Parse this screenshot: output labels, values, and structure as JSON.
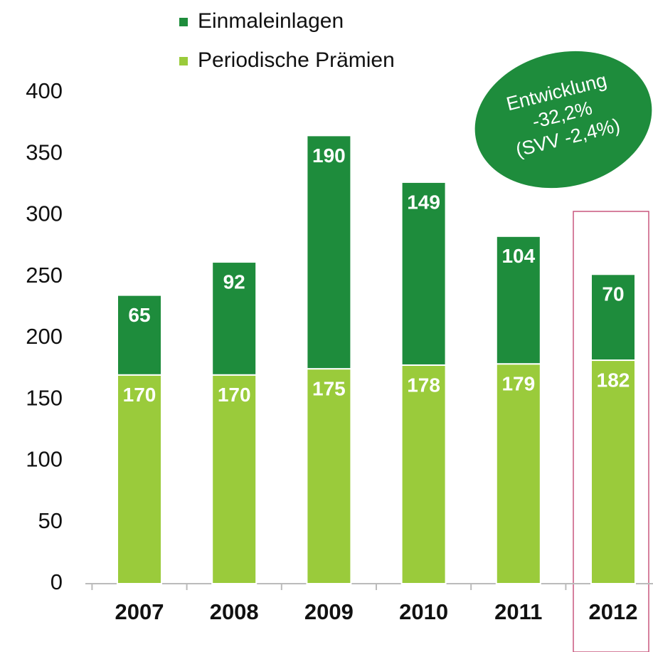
{
  "chart_data": {
    "type": "stacked_bar",
    "categories": [
      "2007",
      "2008",
      "2009",
      "2010",
      "2011",
      "2012"
    ],
    "series": [
      {
        "name": "Periodische Prämien",
        "color": "#9acb3b",
        "values": [
          170,
          170,
          175,
          178,
          179,
          182
        ]
      },
      {
        "name": "Einmaleinlagen",
        "color": "#1e8c3c",
        "values": [
          65,
          92,
          190,
          149,
          104,
          70
        ]
      }
    ],
    "ylim": [
      0,
      400
    ],
    "yticks": [
      0,
      50,
      100,
      150,
      200,
      250,
      300,
      350,
      400
    ],
    "annotation": [
      "Entwicklung",
      "-32,2%",
      "(SVV -2,4%)"
    ],
    "grid": false
  }
}
